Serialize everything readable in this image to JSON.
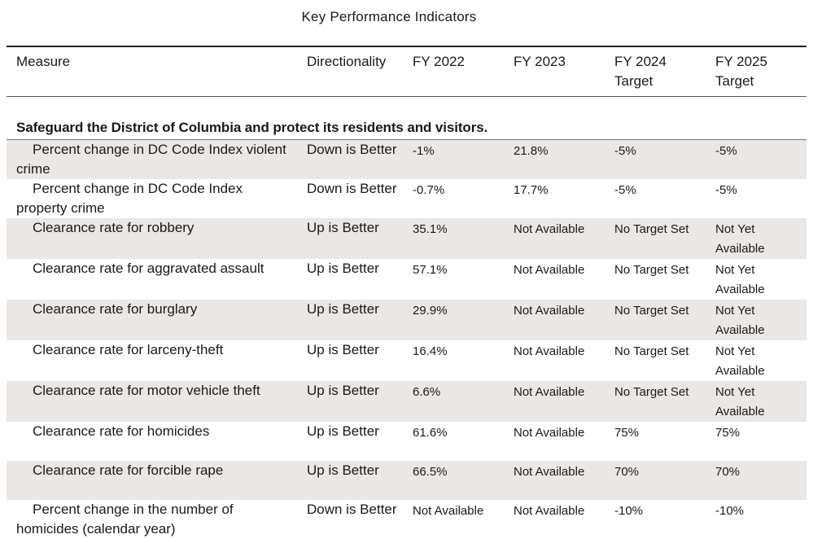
{
  "title": "Key Performance Indicators",
  "headers": {
    "measure": "Measure",
    "directionality": "Directionality",
    "fy2022": "FY 2022",
    "fy2023": "FY 2023",
    "fy2024_line1": "FY 2024",
    "fy2024_line2": "Target",
    "fy2025_line1": "FY 2025",
    "fy2025_line2": "Target"
  },
  "section": "Safeguard the District of Columbia and protect its residents and visitors.",
  "rows": [
    {
      "measure": "Percent change in DC Code Index violent crime",
      "dir": "Down is Better",
      "fy2022": "-1%",
      "fy2023": "21.8%",
      "fy2024": "-5%",
      "fy2025": "-5%"
    },
    {
      "measure": "Percent change in DC Code Index property crime",
      "dir": "Down is Better",
      "fy2022": "-0.7%",
      "fy2023": "17.7%",
      "fy2024": "-5%",
      "fy2025": "-5%"
    },
    {
      "measure": "Clearance rate for robbery",
      "dir": "Up is Better",
      "fy2022": "35.1%",
      "fy2023": "Not Available",
      "fy2024": "No Target Set",
      "fy2025": "Not Yet Available"
    },
    {
      "measure": "Clearance rate for aggravated assault",
      "dir": "Up is Better",
      "fy2022": "57.1%",
      "fy2023": "Not Available",
      "fy2024": "No Target Set",
      "fy2025": "Not Yet Available"
    },
    {
      "measure": "Clearance rate for burglary",
      "dir": "Up is Better",
      "fy2022": "29.9%",
      "fy2023": "Not Available",
      "fy2024": "No Target Set",
      "fy2025": "Not Yet Available"
    },
    {
      "measure": "Clearance rate for larceny-theft",
      "dir": "Up is Better",
      "fy2022": "16.4%",
      "fy2023": "Not Available",
      "fy2024": "No Target Set",
      "fy2025": "Not Yet Available"
    },
    {
      "measure": "Clearance rate for motor vehicle theft",
      "dir": "Up is Better",
      "fy2022": "6.6%",
      "fy2023": "Not Available",
      "fy2024": "No Target Set",
      "fy2025": "Not Yet Available"
    },
    {
      "measure": "Clearance rate for homicides",
      "dir": "Up is Better",
      "fy2022": "61.6%",
      "fy2023": "Not Available",
      "fy2024": "75%",
      "fy2025": "75%"
    },
    {
      "measure": "Clearance rate for forcible rape",
      "dir": "Up is Better",
      "fy2022": "66.5%",
      "fy2023": "Not Available",
      "fy2024": "70%",
      "fy2025": "70%"
    },
    {
      "measure": "Percent change in the number of homicides (calendar year)",
      "dir": "Down is Better",
      "fy2022": "Not Available",
      "fy2023": "Not Available",
      "fy2024": "-10%",
      "fy2025": "-10%"
    }
  ]
}
